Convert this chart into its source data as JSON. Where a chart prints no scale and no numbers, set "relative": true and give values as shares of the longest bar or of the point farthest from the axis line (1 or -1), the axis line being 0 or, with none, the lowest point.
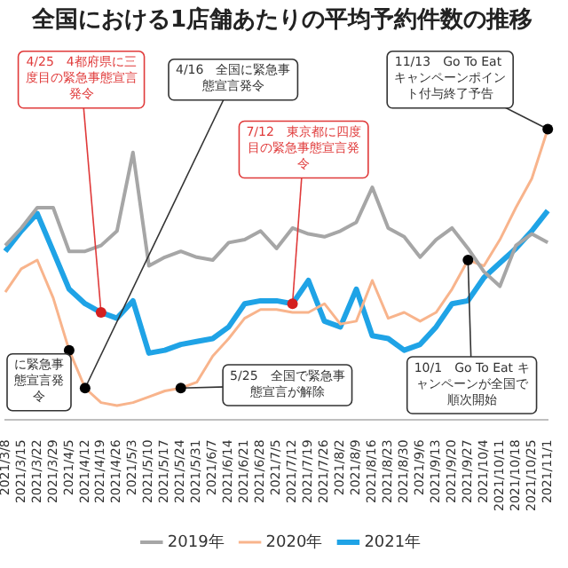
{
  "chart_data": {
    "type": "line",
    "title": "全国における1店舗あたりの平均予約件数の推移",
    "relative": true,
    "marker": "none",
    "line_style": "solid",
    "legend": "bottom",
    "categories": [
      "2021/3/8",
      "2021/3/15",
      "2021/3/22",
      "2021/3/29",
      "2021/4/5",
      "2021/4/12",
      "2021/4/19",
      "2021/4/26",
      "2021/5/3",
      "2021/5/10",
      "2021/5/17",
      "2021/5/24",
      "2021/5/31",
      "2021/6/7",
      "2021/6/14",
      "2021/6/21",
      "2021/6/28",
      "2021/7/5",
      "2021/7/12",
      "2021/7/19",
      "2021/7/26",
      "2021/8/2",
      "2021/8/9",
      "2021/8/16",
      "2021/8/23",
      "2021/8/30",
      "2021/9/6",
      "2021/9/13",
      "2021/9/20",
      "2021/9/27",
      "2021/10/4",
      "2021/10/11",
      "2021/10/18",
      "2021/10/25",
      "2021/11/1"
    ],
    "series": [
      {
        "name": "2019年",
        "color": "#a6a6a6",
        "values": [
          0.6,
          0.66,
          0.73,
          0.73,
          0.58,
          0.58,
          0.6,
          0.65,
          0.92,
          0.53,
          0.56,
          0.58,
          0.56,
          0.55,
          0.61,
          0.62,
          0.65,
          0.59,
          0.66,
          0.64,
          0.63,
          0.65,
          0.68,
          0.8,
          0.66,
          0.63,
          0.56,
          0.62,
          0.66,
          0.59,
          0.51,
          0.46,
          0.6,
          0.64,
          0.61
        ]
      },
      {
        "name": "2020年",
        "color": "#f8b48c",
        "values": [
          0.44,
          0.52,
          0.55,
          0.42,
          0.24,
          0.11,
          0.06,
          0.05,
          0.06,
          0.08,
          0.1,
          0.11,
          0.13,
          0.22,
          0.28,
          0.35,
          0.38,
          0.38,
          0.37,
          0.37,
          0.4,
          0.33,
          0.34,
          0.48,
          0.35,
          0.37,
          0.34,
          0.37,
          0.45,
          0.55,
          0.53,
          0.62,
          0.73,
          0.83,
          1
        ]
      },
      {
        "name": "2021年",
        "color": "#1fa3e6",
        "values": [
          0.58,
          0.65,
          0.71,
          0.58,
          0.45,
          0.4,
          0.37,
          0.35,
          0.41,
          0.23,
          0.24,
          0.26,
          0.27,
          0.28,
          0.32,
          0.4,
          0.41,
          0.41,
          0.4,
          0.48,
          0.34,
          0.32,
          0.45,
          0.29,
          0.28,
          0.24,
          0.26,
          0.32,
          0.4,
          0.41,
          0.49,
          0.54,
          0.59,
          0.65,
          0.72
        ]
      }
    ],
    "annotations": [
      {
        "text": "4/25　4都府県に三度目の緊急事態宣言発令",
        "x": "2021/4/19",
        "y": 0.37
      },
      {
        "text": "4/16　全国に緊急事態宣言発令",
        "x": "2021/4/12",
        "y": 0.11
      },
      {
        "text": "に緊急事態宣言発令",
        "x": "2021/4/5",
        "y": 0.24
      },
      {
        "text": "5/25　全国で緊急事態宣言が解除",
        "x": "2021/5/24",
        "y": 0.11
      },
      {
        "text": "7/12　東京都に四度目の緊急事態宣言発令",
        "x": "2021/7/12",
        "y": 0.4
      },
      {
        "text": "11/13　Go To Eat キャンペーンポイント付与終了予告",
        "x": "2021/11/1",
        "y": 1
      },
      {
        "text": "10/1　Go To Eat キャンペーンが全国で順次開始",
        "x": "2021/9/27",
        "y": 0.55
      }
    ]
  }
}
